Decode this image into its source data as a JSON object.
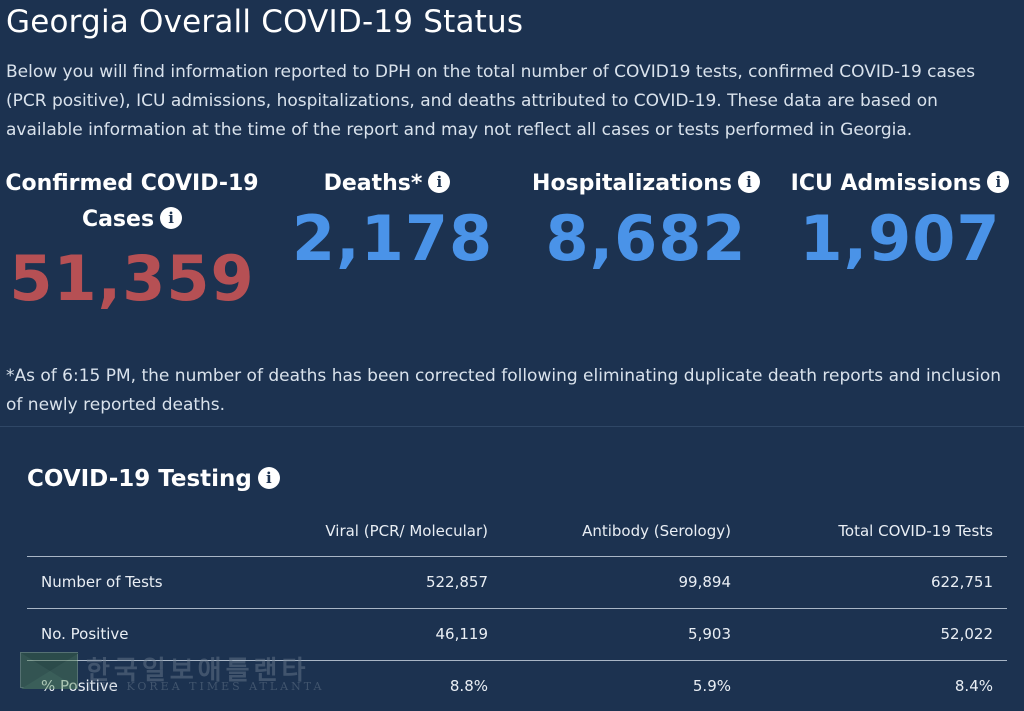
{
  "header": {
    "title": "Georgia Overall COVID-19 Status",
    "intro": "Below you will find information reported to DPH on the total number of COVID19 tests, confirmed COVID-19 cases (PCR positive), ICU admissions, hospitalizations, and deaths attributed to COVID-19. These data are based on available information at the time of the report and may not reflect all cases or tests performed in Georgia."
  },
  "stats": {
    "cases": {
      "label": "Confirmed COVID-19 Cases",
      "value": "51,359"
    },
    "deaths": {
      "label": "Deaths*",
      "value": "2,178"
    },
    "hospitalizations": {
      "label": "Hospitalizations",
      "value": "8,682"
    },
    "icu": {
      "label": "ICU Admissions",
      "value": "1,907"
    },
    "info_glyph": "i"
  },
  "footnote": "*As of 6:15 PM, the number of deaths has been corrected following eliminating duplicate death reports and inclusion of newly reported deaths.",
  "testing": {
    "title": "COVID-19 Testing",
    "columns": [
      "",
      "Viral (PCR/ Molecular)",
      "Antibody (Serology)",
      "Total COVID-19 Tests"
    ],
    "rows": [
      {
        "label": "Number of Tests",
        "viral": "522,857",
        "antibody": "99,894",
        "total": "622,751"
      },
      {
        "label": "No. Positive",
        "viral": "46,119",
        "antibody": "5,903",
        "total": "52,022"
      },
      {
        "label": "% Positive",
        "viral": "8.8%",
        "antibody": "5.9%",
        "total": "8.4%"
      }
    ]
  },
  "watermark": {
    "korean": "한국일보애틀랜타",
    "english": "THE KOREA TIMES ATLANTA"
  },
  "colors": {
    "background": "#1c3250",
    "cases": "#b65054",
    "stat_blue": "#4a93e8"
  }
}
